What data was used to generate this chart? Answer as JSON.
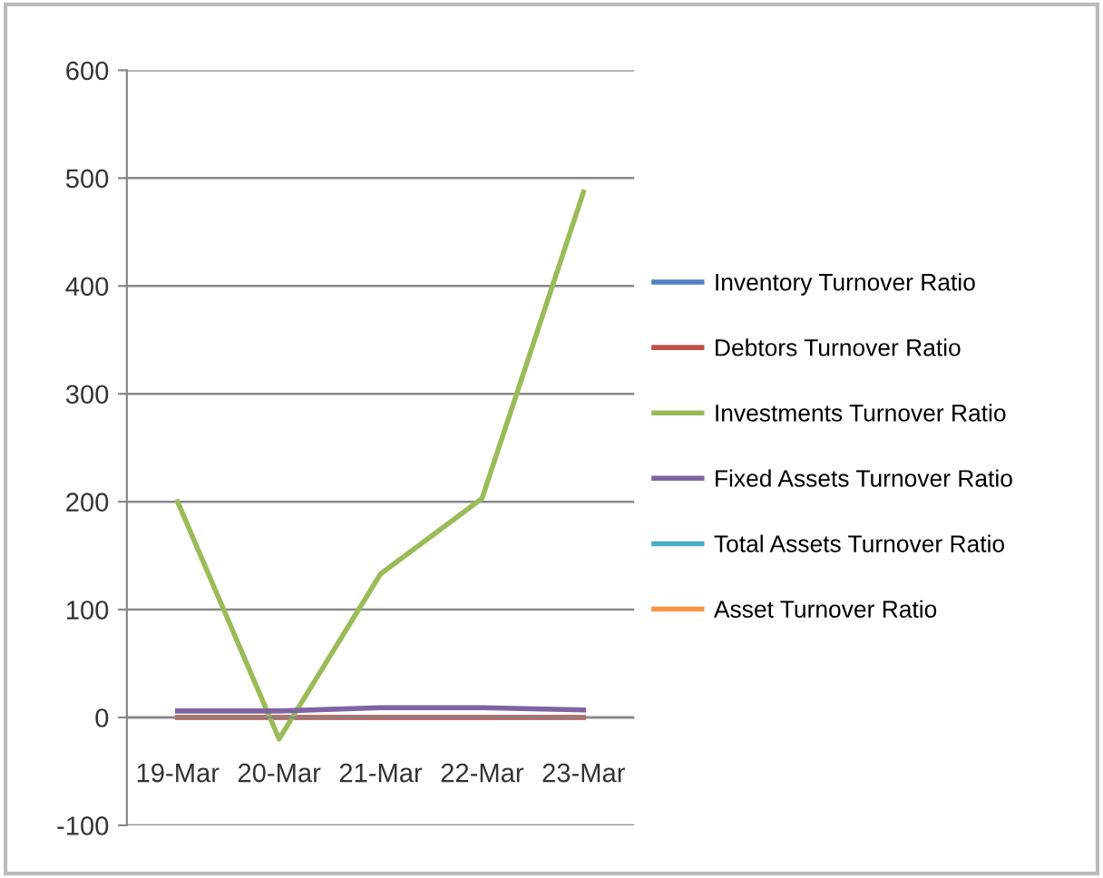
{
  "chart_data": {
    "type": "line",
    "categories": [
      "19-Mar",
      "20-Mar",
      "21-Mar",
      "22-Mar",
      "23-Mar"
    ],
    "series": [
      {
        "name": "Inventory Turnover Ratio",
        "color": "#4f81bd",
        "values": [
          null,
          null,
          null,
          null,
          null
        ]
      },
      {
        "name": "Debtors Turnover Ratio",
        "color": "#c0504d",
        "values": [
          0,
          0,
          0,
          0,
          0
        ]
      },
      {
        "name": "Investments Turnover Ratio",
        "color": "#9bbb59",
        "values": [
          200,
          -20,
          133,
          203,
          487
        ]
      },
      {
        "name": "Fixed Assets Turnover Ratio",
        "color": "#8064a2",
        "values": [
          6,
          6,
          9,
          9,
          7
        ]
      },
      {
        "name": "Total Assets Turnover Ratio",
        "color": "#4bacc6",
        "values": [
          null,
          null,
          null,
          null,
          null
        ]
      },
      {
        "name": "Asset Turnover Ratio",
        "color": "#f79646",
        "values": [
          null,
          null,
          null,
          null,
          null
        ]
      }
    ],
    "ylim": [
      -100,
      600
    ],
    "yticks": [
      -100,
      0,
      100,
      200,
      300,
      400,
      500,
      600
    ],
    "grid": "y",
    "legend": "right",
    "marker": "none"
  }
}
